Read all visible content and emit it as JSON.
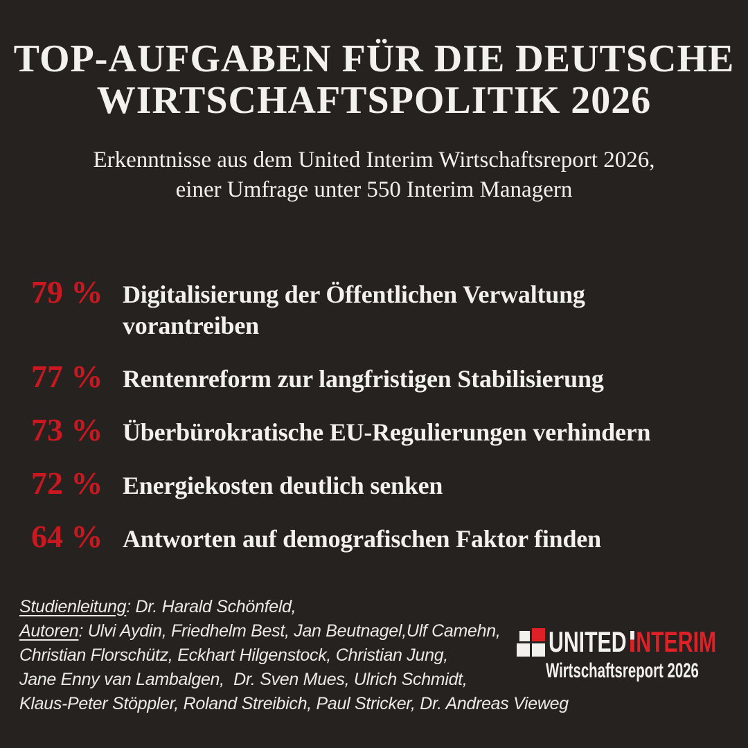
{
  "header": {
    "title_line1": "TOP-AUFGABEN FÜR DIE DEUTSCHE",
    "title_line2": "WIRTSCHAFTSPOLITIK 2026",
    "subtitle_line1": "Erkenntnisse aus dem United Interim Wirtschaftsreport 2026,",
    "subtitle_line2": "einer Umfrage unter 550 Interim Managern"
  },
  "stats": [
    {
      "percent": "79 %",
      "text": "Digitalisierung der Öffentlichen Verwaltung\nvorantreiben"
    },
    {
      "percent": "77 %",
      "text": "Rentenreform zur langfristigen Stabilisierung"
    },
    {
      "percent": "73 %",
      "text": "Überbürokratische EU-Regulierungen verhindern"
    },
    {
      "percent": "72 %",
      "text": "Energiekosten deutlich senken"
    },
    {
      "percent": "64 %",
      "text": "Antworten auf demografischen Faktor finden"
    }
  ],
  "footer": {
    "studienleitung_label": "Studienleitung",
    "studienleitung_rest": ": Dr. Harald Schönfeld,",
    "autoren_label": "Autoren",
    "autoren_rest": ": Ulvi Aydin, Friedhelm Best, Jan Beutnagel,Ulf Camehn,",
    "lines": [
      "Christian Florschütz, Eckhart Hilgenstock, Christian Jung,",
      "Jane Enny van Lambalgen,  Dr. Sven Mues, Ulrich Schmidt,",
      "Klaus-Peter Stöppler, Roland Streibich, Paul Stricker, Dr. Andreas Vieweg"
    ]
  },
  "logo": {
    "word_united": "UNITED",
    "interim_initial": "I",
    "interim_rest": "NTERIM",
    "tagline": "Wirtschaftsreport 2026"
  },
  "colors": {
    "background": "#252220",
    "text_white": "#f3f1ee",
    "accent_red": "#cb1820",
    "logo_red": "#e02027"
  },
  "chart_data": {
    "type": "bar",
    "title": "Top-Aufgaben für die deutsche Wirtschaftspolitik 2026",
    "subtitle": "Erkenntnisse aus dem United Interim Wirtschaftsreport 2026, einer Umfrage unter 550 Interim Managern",
    "categories": [
      "Digitalisierung der Öffentlichen Verwaltung vorantreiben",
      "Rentenreform zur langfristigen Stabilisierung",
      "Überbürokratische EU-Regulierungen verhindern",
      "Energiekosten deutlich senken",
      "Antworten auf demografischen Faktor finden"
    ],
    "values": [
      79,
      77,
      73,
      72,
      64
    ],
    "unit": "%",
    "sample_size": 550,
    "legend": false,
    "rendering": "ranked text list, no axes"
  }
}
